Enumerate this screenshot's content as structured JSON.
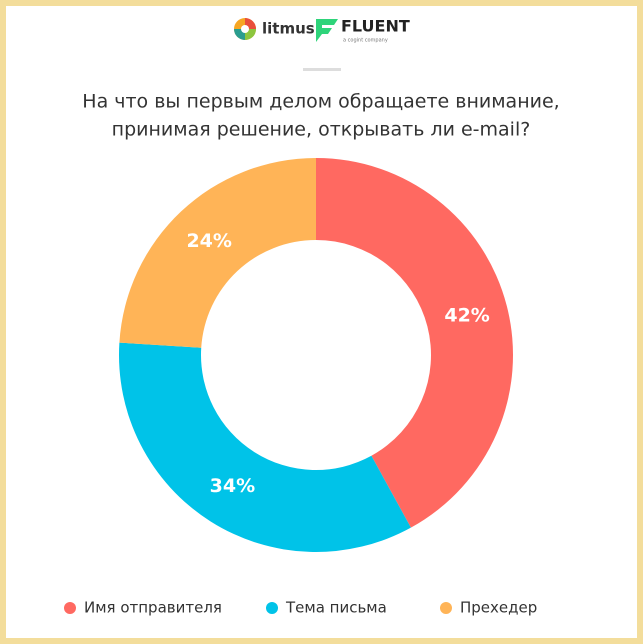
{
  "header": {
    "brand_left": "litmus",
    "brand_right": "FLUENT",
    "brand_right_sub": "a cogint company"
  },
  "chart_data": {
    "type": "donut",
    "title_lines": [
      "На что вы первым делом обращаете внимание,",
      "принимая решение, открывать ли e-mail?"
    ],
    "categories": [
      "Имя отправителя",
      "Тема письма",
      "Прехедер"
    ],
    "values": [
      42,
      34,
      24
    ],
    "value_labels": [
      "42%",
      "34%",
      "24%"
    ],
    "colors": [
      "#ff6961",
      "#00c3e8",
      "#ffb457"
    ],
    "legend": "bottom"
  }
}
